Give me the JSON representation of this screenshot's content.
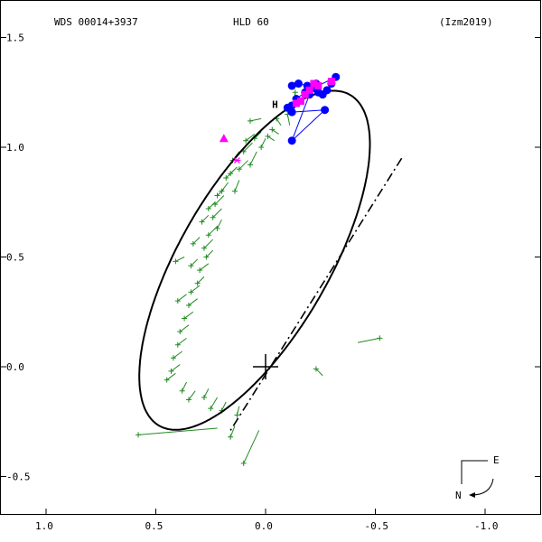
{
  "header": {
    "left": "WDS 00014+3937",
    "center": "HLD  60",
    "right": "(Izm2019)"
  },
  "compass": {
    "east": "E",
    "north": "N"
  },
  "colors": {
    "orbit": "#000000",
    "observations": "#228B22",
    "high_precision": "#0000FF",
    "speckle": "#FF00FF",
    "label_h": "#FF0000"
  },
  "chart_data": {
    "type": "scatter",
    "title": "",
    "xlabel": "",
    "ylabel": "",
    "xlim": [
      1.2,
      -1.0
    ],
    "ylim": [
      -0.6,
      1.55
    ],
    "x_ticks": [
      "1.0",
      "0.5",
      "0.0",
      "-0.5",
      "-1.0"
    ],
    "x_tick_values": [
      1.0,
      0.5,
      0.0,
      -0.5,
      -1.0
    ],
    "y_ticks": [
      "1.5",
      "1.0",
      "0.5",
      "0.0",
      "-0.5"
    ],
    "y_tick_values": [
      1.5,
      1.0,
      0.5,
      0.0,
      -0.5
    ],
    "grid": false,
    "origin": [
      0.0,
      0.0
    ],
    "orbit_ellipse": {
      "center": [
        0.05,
        0.485
      ],
      "semi_major": 0.87,
      "semi_minor": 0.34,
      "angle_deg": -60
    },
    "line_of_nodes": [
      [
        -0.62,
        0.95
      ],
      [
        0.16,
        -0.29
      ]
    ],
    "micrometer_obs": [
      [
        [
          -0.135,
          1.25
        ],
        [
          -0.125,
          1.15
        ]
      ],
      [
        [
          -0.1,
          1.15
        ],
        [
          -0.11,
          1.1
        ]
      ],
      [
        [
          -0.05,
          1.13
        ],
        [
          -0.07,
          1.1
        ]
      ],
      [
        [
          -0.03,
          1.08
        ],
        [
          -0.06,
          1.06
        ]
      ],
      [
        [
          -0.01,
          1.05
        ],
        [
          -0.04,
          1.03
        ]
      ],
      [
        [
          0.07,
          1.12
        ],
        [
          0.02,
          1.13
        ]
      ],
      [
        [
          0.05,
          1.04
        ],
        [
          0.02,
          1.07
        ]
      ],
      [
        [
          0.09,
          1.03
        ],
        [
          0.05,
          1.06
        ]
      ],
      [
        [
          0.02,
          1.0
        ],
        [
          0.0,
          1.04
        ]
      ],
      [
        [
          0.1,
          0.98
        ],
        [
          0.06,
          1.02
        ]
      ],
      [
        [
          0.07,
          0.92
        ],
        [
          0.04,
          0.98
        ]
      ],
      [
        [
          0.12,
          0.9
        ],
        [
          0.08,
          0.94
        ]
      ],
      [
        [
          0.15,
          0.94
        ],
        [
          0.12,
          0.98
        ]
      ],
      [
        [
          0.18,
          0.86
        ],
        [
          0.14,
          0.9
        ]
      ],
      [
        [
          0.14,
          0.8
        ],
        [
          0.12,
          0.85
        ]
      ],
      [
        [
          0.2,
          0.8
        ],
        [
          0.17,
          0.84
        ]
      ],
      [
        [
          0.23,
          0.74
        ],
        [
          0.19,
          0.78
        ]
      ],
      [
        [
          0.24,
          0.68
        ],
        [
          0.2,
          0.72
        ]
      ],
      [
        [
          0.22,
          0.63
        ],
        [
          0.2,
          0.67
        ]
      ],
      [
        [
          0.26,
          0.6
        ],
        [
          0.22,
          0.64
        ]
      ],
      [
        [
          0.28,
          0.54
        ],
        [
          0.24,
          0.58
        ]
      ],
      [
        [
          0.27,
          0.5
        ],
        [
          0.24,
          0.53
        ]
      ],
      [
        [
          0.3,
          0.44
        ],
        [
          0.26,
          0.47
        ]
      ],
      [
        [
          0.31,
          0.38
        ],
        [
          0.28,
          0.41
        ]
      ],
      [
        [
          0.34,
          0.34
        ],
        [
          0.3,
          0.37
        ]
      ],
      [
        [
          0.35,
          0.28
        ],
        [
          0.31,
          0.31
        ]
      ],
      [
        [
          0.37,
          0.22
        ],
        [
          0.33,
          0.25
        ]
      ],
      [
        [
          0.39,
          0.16
        ],
        [
          0.35,
          0.19
        ]
      ],
      [
        [
          0.4,
          0.1
        ],
        [
          0.36,
          0.13
        ]
      ],
      [
        [
          0.42,
          0.04
        ],
        [
          0.38,
          0.07
        ]
      ],
      [
        [
          0.43,
          -0.02
        ],
        [
          0.39,
          0.01
        ]
      ],
      [
        [
          0.45,
          -0.06
        ],
        [
          0.41,
          -0.03
        ]
      ],
      [
        [
          0.38,
          -0.11
        ],
        [
          0.36,
          -0.07
        ]
      ],
      [
        [
          0.35,
          -0.15
        ],
        [
          0.32,
          -0.11
        ]
      ],
      [
        [
          0.28,
          -0.14
        ],
        [
          0.26,
          -0.1
        ]
      ],
      [
        [
          0.25,
          -0.19
        ],
        [
          0.22,
          -0.14
        ]
      ],
      [
        [
          0.2,
          -0.2
        ],
        [
          0.18,
          -0.16
        ]
      ],
      [
        [
          0.13,
          -0.22
        ],
        [
          0.12,
          -0.18
        ]
      ],
      [
        [
          0.16,
          -0.32
        ],
        [
          0.14,
          -0.27
        ]
      ],
      [
        [
          0.58,
          -0.31
        ],
        [
          0.22,
          -0.28
        ]
      ],
      [
        [
          0.1,
          -0.44
        ],
        [
          0.03,
          -0.29
        ]
      ],
      [
        [
          -0.52,
          0.13
        ],
        [
          -0.42,
          0.11
        ]
      ],
      [
        [
          -0.23,
          -0.01
        ],
        [
          -0.26,
          -0.04
        ]
      ],
      [
        [
          0.4,
          0.3
        ],
        [
          0.36,
          0.33
        ]
      ],
      [
        [
          0.41,
          0.48
        ],
        [
          0.37,
          0.5
        ]
      ],
      [
        [
          0.34,
          0.46
        ],
        [
          0.31,
          0.49
        ]
      ],
      [
        [
          0.33,
          0.56
        ],
        [
          0.3,
          0.59
        ]
      ],
      [
        [
          0.29,
          0.66
        ],
        [
          0.26,
          0.69
        ]
      ],
      [
        [
          0.26,
          0.72
        ],
        [
          0.23,
          0.75
        ]
      ],
      [
        [
          0.22,
          0.78
        ],
        [
          0.19,
          0.81
        ]
      ],
      [
        [
          0.16,
          0.88
        ],
        [
          0.13,
          0.91
        ]
      ]
    ],
    "high_precision_obs": [
      [
        -0.12,
        1.28
      ],
      [
        -0.15,
        1.29
      ],
      [
        -0.19,
        1.28
      ],
      [
        -0.22,
        1.27
      ],
      [
        -0.24,
        1.25
      ],
      [
        -0.26,
        1.24
      ],
      [
        -0.28,
        1.26
      ],
      [
        -0.3,
        1.29
      ],
      [
        -0.32,
        1.32
      ],
      [
        -0.18,
        1.25
      ],
      [
        -0.14,
        1.22
      ],
      [
        -0.12,
        1.19
      ],
      [
        -0.1,
        1.18
      ],
      [
        -0.12,
        1.16
      ],
      [
        -0.27,
        1.17
      ],
      [
        -0.12,
        1.03
      ],
      [
        -0.2,
        1.24
      ],
      [
        -0.23,
        1.29
      ]
    ],
    "speckle_obs": [
      [
        -0.22,
        1.29
      ],
      [
        -0.24,
        1.28
      ],
      [
        -0.3,
        1.3
      ],
      [
        -0.16,
        1.21
      ],
      [
        -0.14,
        1.2
      ],
      [
        -0.18,
        1.24
      ],
      [
        -0.2,
        1.26
      ]
    ],
    "other_markers": [
      {
        "type": "triangle",
        "x": 0.19,
        "y": 1.04
      },
      {
        "type": "cross",
        "x": 0.13,
        "y": 0.94
      }
    ],
    "h_marker": {
      "x": -0.05,
      "y": 1.2,
      "label": "H"
    }
  }
}
